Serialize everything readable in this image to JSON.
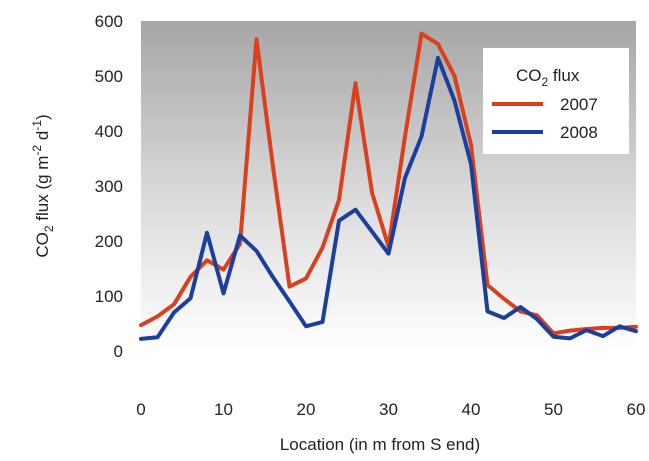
{
  "chart_data": {
    "type": "line",
    "xlabel": "Location (in m from S end)",
    "ylabel": {
      "parts": [
        "CO",
        "2",
        " flux (g m",
        "-2",
        " d",
        "-1",
        ")"
      ]
    },
    "xlim": [
      0,
      60
    ],
    "ylim": [
      0,
      600
    ],
    "x_ticks": [
      "0",
      "10",
      "20",
      "30",
      "40",
      "50",
      "60"
    ],
    "y_ticks": [
      "0",
      "100",
      "200",
      "300",
      "400",
      "500",
      "600"
    ],
    "grid": false,
    "background": "vertical gradient grey to white",
    "legend": {
      "position": "top-right",
      "title_parts": [
        "CO",
        "2",
        " flux"
      ]
    },
    "series": [
      {
        "name": "2007",
        "color": "#d9411e",
        "x": [
          0,
          2,
          4,
          6,
          8,
          10,
          12,
          14,
          16,
          18,
          20,
          22,
          24,
          26,
          28,
          30,
          32,
          34,
          36,
          38,
          40,
          42,
          44,
          46,
          48,
          50,
          52,
          54,
          56,
          58,
          60
        ],
        "values": [
          47,
          63,
          85,
          135,
          165,
          148,
          195,
          567,
          335,
          117,
          132,
          188,
          275,
          487,
          288,
          190,
          390,
          577,
          558,
          500,
          375,
          120,
          95,
          72,
          65,
          32,
          37,
          40,
          42,
          42,
          44
        ]
      },
      {
        "name": "2008",
        "color": "#1c3f9c",
        "x": [
          0,
          2,
          4,
          6,
          8,
          10,
          12,
          14,
          16,
          18,
          20,
          22,
          24,
          26,
          28,
          30,
          32,
          34,
          36,
          38,
          40,
          42,
          44,
          46,
          48,
          50,
          52,
          54,
          56,
          58,
          60
        ],
        "values": [
          22,
          25,
          70,
          96,
          215,
          105,
          210,
          182,
          134,
          90,
          45,
          53,
          237,
          257,
          217,
          177,
          315,
          390,
          533,
          455,
          340,
          72,
          60,
          80,
          58,
          26,
          23,
          38,
          27,
          45,
          36
        ]
      }
    ]
  }
}
